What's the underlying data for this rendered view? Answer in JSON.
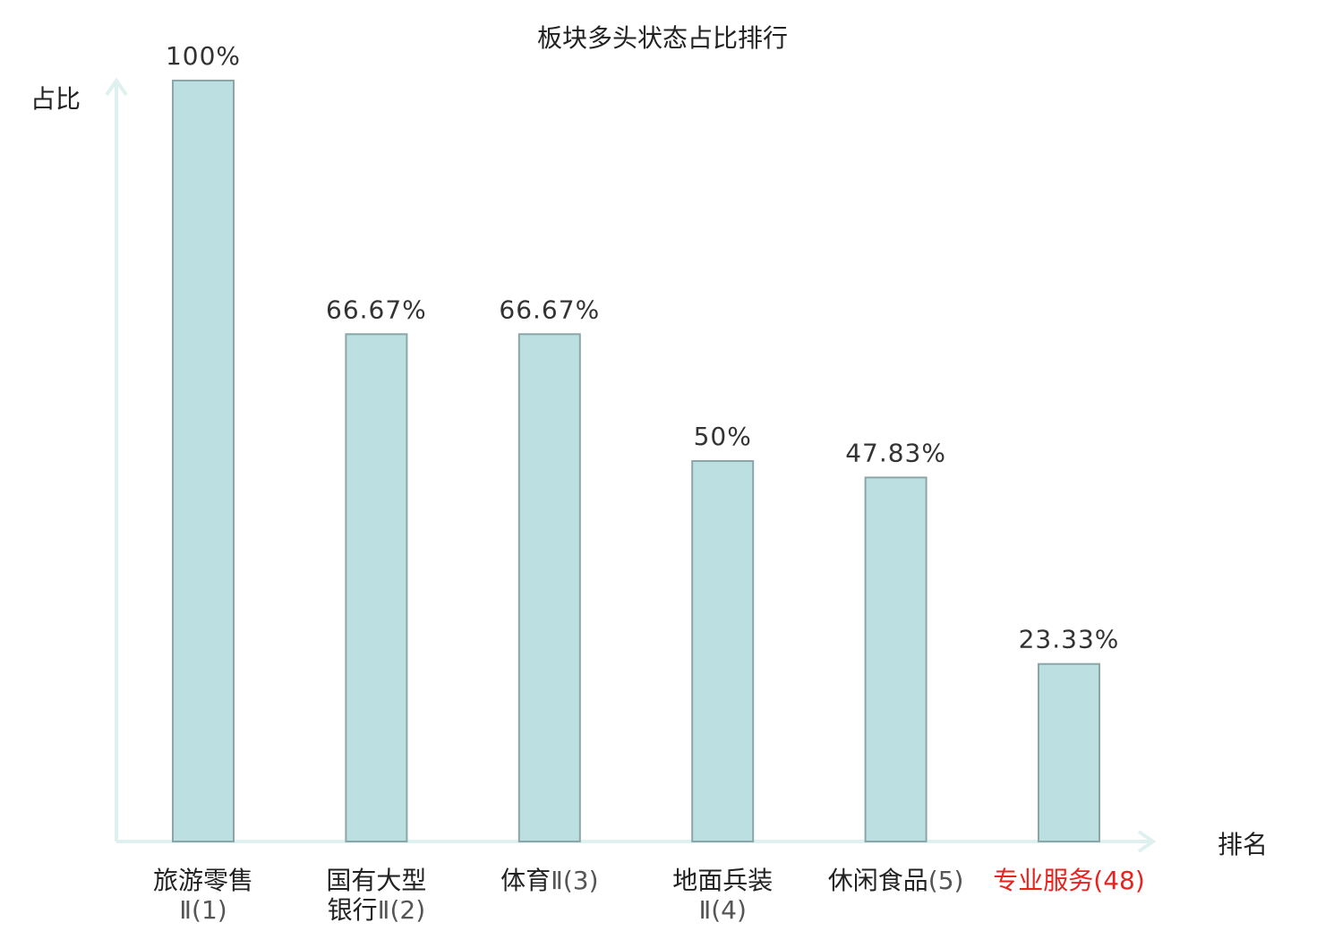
{
  "chart_data": {
    "type": "bar",
    "title": "板块多头状态占比排行",
    "xlabel": "排名",
    "ylabel": "占比",
    "ylim": [
      0,
      100
    ],
    "grid": false,
    "categories": [
      {
        "lines": [
          "旅游零售",
          "Ⅱ(1)"
        ],
        "highlight": false
      },
      {
        "lines": [
          "国有大型",
          "银行Ⅱ(2)"
        ],
        "highlight": false
      },
      {
        "lines": [
          "体育Ⅱ(3)"
        ],
        "highlight": false
      },
      {
        "lines": [
          "地面兵装",
          "Ⅱ(4)"
        ],
        "highlight": false
      },
      {
        "lines": [
          "休闲食品(5)"
        ],
        "highlight": false
      },
      {
        "lines": [
          "专业服务(48)"
        ],
        "highlight": true
      }
    ],
    "values": [
      100,
      66.67,
      66.67,
      50,
      47.83,
      23.33
    ],
    "value_labels": [
      "100%",
      "66.67%",
      "66.67%",
      "50%",
      "47.83%",
      "23.33%"
    ],
    "colors": {
      "bar_fill": "#bce0e2",
      "bar_stroke": "#8aa6a8",
      "axis": "#dff1ef",
      "highlight": "#e8221d"
    }
  }
}
